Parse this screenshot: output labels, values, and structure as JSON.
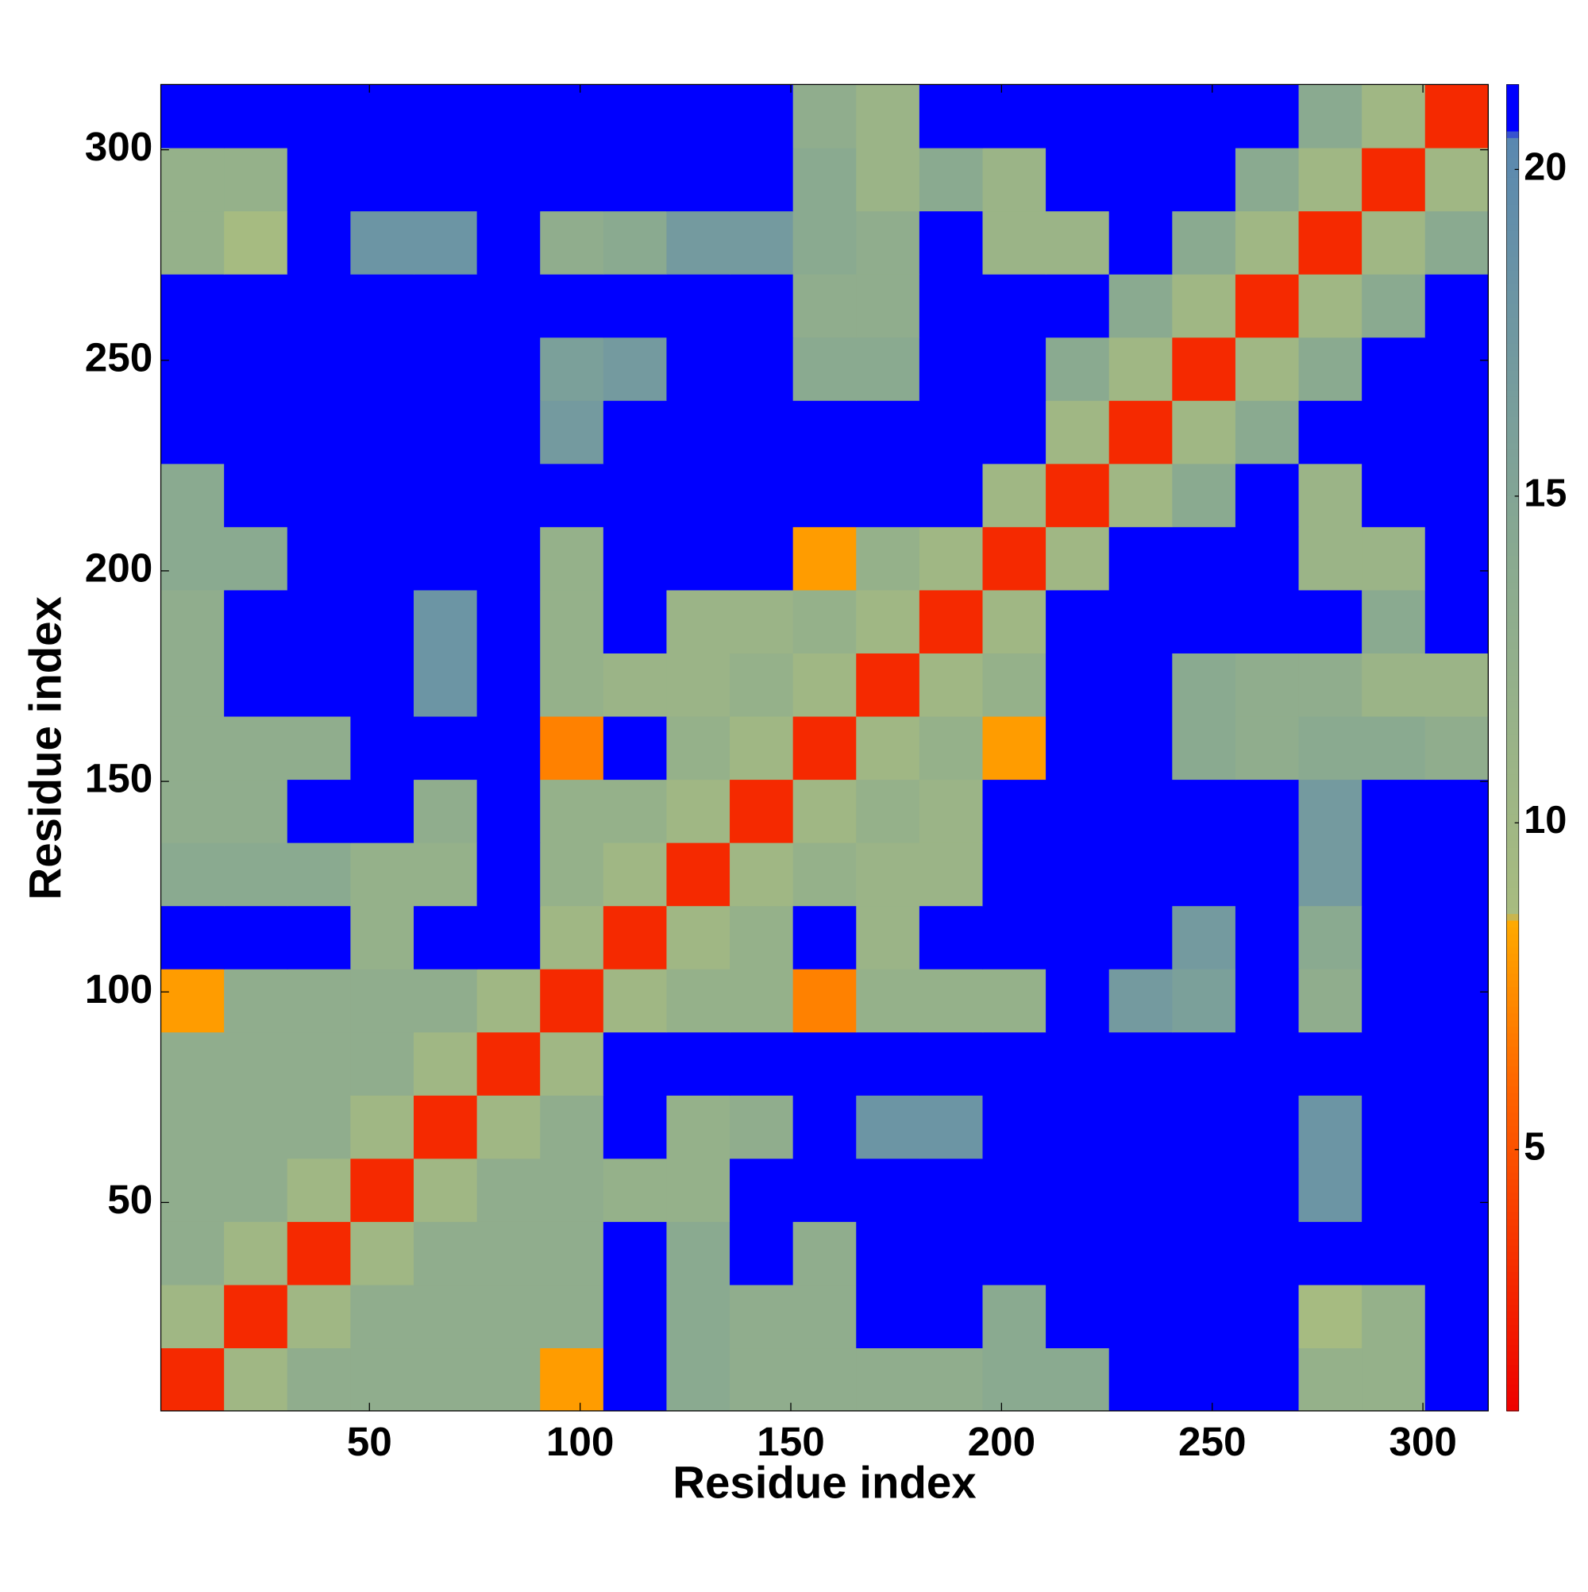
{
  "chart_data": {
    "type": "heatmap",
    "xlabel": "Residue index",
    "ylabel": "Residue index",
    "x": [
      8,
      23,
      38,
      53,
      68,
      83,
      98,
      113,
      128,
      143,
      158,
      173,
      188,
      203,
      218,
      233,
      248,
      263,
      278,
      293,
      308
    ],
    "y": [
      8,
      23,
      38,
      53,
      68,
      83,
      98,
      113,
      128,
      143,
      158,
      173,
      188,
      203,
      218,
      233,
      248,
      263,
      278,
      293,
      308
    ],
    "values": [
      [
        3,
        10,
        13,
        13,
        13,
        13,
        8,
        21,
        14,
        13,
        13,
        13,
        13,
        14,
        14,
        21,
        21,
        21,
        12,
        12,
        21
      ],
      [
        10,
        3,
        10,
        13,
        13,
        13,
        13,
        21,
        14,
        13,
        13,
        21,
        21,
        14,
        21,
        21,
        21,
        21,
        9,
        12,
        21
      ],
      [
        13,
        10,
        3,
        10,
        13,
        13,
        13,
        21,
        14,
        21,
        13,
        21,
        21,
        21,
        21,
        21,
        21,
        21,
        21,
        21,
        21
      ],
      [
        13,
        13,
        10,
        3,
        10,
        13,
        13,
        12,
        12,
        21,
        21,
        21,
        21,
        21,
        21,
        21,
        21,
        21,
        18,
        21,
        21
      ],
      [
        13,
        13,
        13,
        10,
        3,
        10,
        13,
        21,
        12,
        13,
        21,
        18,
        18,
        21,
        21,
        21,
        21,
        21,
        18,
        21,
        21
      ],
      [
        13,
        13,
        13,
        13,
        10,
        3,
        10,
        21,
        21,
        21,
        21,
        21,
        21,
        21,
        21,
        21,
        21,
        21,
        21,
        21,
        21
      ],
      [
        8,
        13,
        13,
        13,
        13,
        10,
        3,
        10,
        12,
        12,
        7,
        12,
        12,
        12,
        21,
        17,
        16,
        21,
        13,
        21,
        21
      ],
      [
        21,
        21,
        21,
        12,
        21,
        21,
        10,
        3,
        10,
        12,
        21,
        11,
        21,
        21,
        21,
        21,
        17,
        21,
        14,
        21,
        21
      ],
      [
        14,
        14,
        14,
        12,
        12,
        21,
        12,
        10,
        3,
        10,
        12,
        11,
        11,
        21,
        21,
        21,
        21,
        21,
        17,
        21,
        21
      ],
      [
        13,
        13,
        21,
        21,
        13,
        21,
        12,
        12,
        10,
        3,
        10,
        12,
        11,
        21,
        21,
        21,
        21,
        21,
        17,
        21,
        21
      ],
      [
        13,
        13,
        13,
        21,
        21,
        21,
        7,
        21,
        12,
        10,
        3,
        10,
        12,
        8,
        21,
        21,
        14,
        13,
        14,
        14,
        13
      ],
      [
        13,
        21,
        21,
        21,
        18,
        21,
        12,
        11,
        11,
        12,
        10,
        3,
        10,
        12,
        21,
        21,
        14,
        13,
        13,
        11,
        11
      ],
      [
        13,
        21,
        21,
        21,
        18,
        21,
        12,
        21,
        11,
        11,
        12,
        10,
        3,
        10,
        21,
        21,
        21,
        21,
        21,
        14,
        21
      ],
      [
        14,
        14,
        21,
        21,
        21,
        21,
        12,
        21,
        21,
        21,
        8,
        12,
        10,
        3,
        10,
        21,
        21,
        21,
        11,
        11,
        21
      ],
      [
        14,
        21,
        21,
        21,
        21,
        21,
        21,
        21,
        21,
        21,
        21,
        21,
        21,
        10,
        3,
        10,
        14,
        21,
        11,
        21,
        21
      ],
      [
        21,
        21,
        21,
        21,
        21,
        21,
        17,
        21,
        21,
        21,
        21,
        21,
        21,
        21,
        10,
        3,
        10,
        14,
        21,
        21,
        21
      ],
      [
        21,
        21,
        21,
        21,
        21,
        21,
        16,
        17,
        21,
        21,
        14,
        14,
        21,
        21,
        14,
        10,
        3,
        10,
        14,
        21,
        21
      ],
      [
        21,
        21,
        21,
        21,
        21,
        21,
        21,
        21,
        21,
        21,
        13,
        13,
        21,
        21,
        21,
        14,
        10,
        3,
        10,
        14,
        21
      ],
      [
        12,
        9,
        21,
        18,
        18,
        21,
        13,
        14,
        17,
        17,
        14,
        13,
        21,
        11,
        11,
        21,
        14,
        10,
        3,
        10,
        14
      ],
      [
        12,
        12,
        21,
        21,
        21,
        21,
        21,
        21,
        21,
        21,
        14,
        11,
        14,
        11,
        21,
        21,
        21,
        14,
        10,
        3,
        10
      ],
      [
        21,
        21,
        21,
        21,
        21,
        21,
        21,
        21,
        21,
        21,
        13,
        11,
        21,
        21,
        21,
        21,
        21,
        21,
        14,
        10,
        3
      ]
    ],
    "xlim": [
      0.5,
      315.5
    ],
    "ylim": [
      0.5,
      315.5
    ],
    "xticks": [
      50,
      100,
      150,
      200,
      250,
      300
    ],
    "yticks": [
      50,
      100,
      150,
      200,
      250,
      300
    ],
    "clim": [
      1,
      21.3
    ],
    "cticks": [
      5,
      10,
      15,
      20
    ],
    "colorscale": [
      [
        1,
        "#ee0000"
      ],
      [
        6,
        "#ff6600"
      ],
      [
        8.5,
        "#ffaa00"
      ],
      [
        8.6,
        "#a8bc80"
      ],
      [
        14,
        "#8aaa90"
      ],
      [
        20.5,
        "#5a88b0"
      ],
      [
        20.6,
        "#0000ff"
      ],
      [
        21.3,
        "#0000ff"
      ]
    ]
  }
}
